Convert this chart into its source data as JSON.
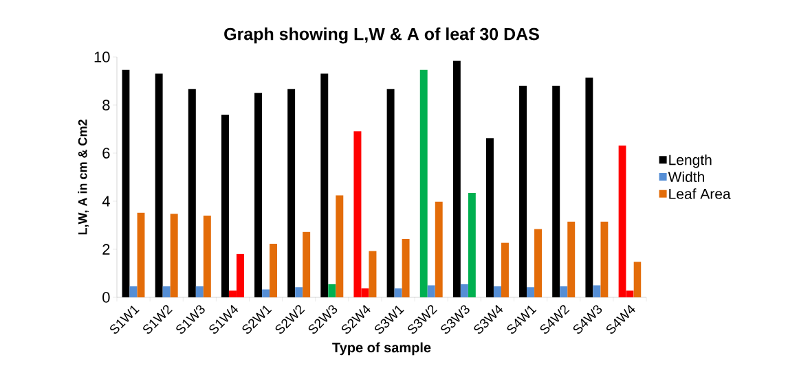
{
  "chart_data": {
    "type": "bar",
    "title": "Graph showing L,W & A of leaf 30 DAS",
    "xlabel": "Type of sample",
    "ylabel": "L,W, A in cm & Cm2",
    "categories": [
      "S1W1",
      "S1W2",
      "S1W3",
      "S1W4",
      "S2W1",
      "S2W2",
      "S2W3",
      "S2W4",
      "S3W1",
      "S3W2",
      "S3W3",
      "S3W4",
      "S4W1",
      "S4W2",
      "S4W3",
      "S4W4"
    ],
    "series": [
      {
        "name": "Length",
        "color": "#000000",
        "values": [
          9.47,
          9.31,
          8.67,
          7.6,
          8.51,
          8.67,
          9.31,
          6.91,
          8.67,
          9.47,
          9.84,
          6.62,
          8.81,
          8.81,
          9.14,
          6.32
        ],
        "colors": [
          "#000000",
          "#000000",
          "#000000",
          "#000000",
          "#000000",
          "#000000",
          "#000000",
          "#ff0000",
          "#000000",
          "#00b050",
          "#000000",
          "#000000",
          "#000000",
          "#000000",
          "#000000",
          "#ff0000"
        ]
      },
      {
        "name": "Width",
        "color": "#558ed5",
        "values": [
          0.46,
          0.46,
          0.46,
          0.28,
          0.33,
          0.42,
          0.55,
          0.37,
          0.37,
          0.5,
          0.55,
          0.46,
          0.42,
          0.46,
          0.5,
          0.28
        ],
        "colors": [
          "#558ed5",
          "#558ed5",
          "#558ed5",
          "#ff0000",
          "#558ed5",
          "#558ed5",
          "#00b050",
          "#ff0000",
          "#558ed5",
          "#558ed5",
          "#558ed5",
          "#558ed5",
          "#558ed5",
          "#558ed5",
          "#558ed5",
          "#ff0000"
        ]
      },
      {
        "name": "Leaf Area",
        "color": "#e36c09",
        "values": [
          3.52,
          3.48,
          3.4,
          1.81,
          2.23,
          2.72,
          4.24,
          1.93,
          2.43,
          3.98,
          4.34,
          2.27,
          2.84,
          3.15,
          3.15,
          1.48
        ],
        "colors": [
          "#e36c09",
          "#e36c09",
          "#e36c09",
          "#ff0000",
          "#e36c09",
          "#e36c09",
          "#e36c09",
          "#e36c09",
          "#e36c09",
          "#e36c09",
          "#00b050",
          "#e36c09",
          "#e36c09",
          "#e36c09",
          "#e36c09",
          "#e36c09"
        ]
      }
    ],
    "ylim": [
      0,
      10
    ],
    "yticks": [
      0,
      2,
      4,
      6,
      8,
      10
    ],
    "legend": "right",
    "grid": false
  }
}
